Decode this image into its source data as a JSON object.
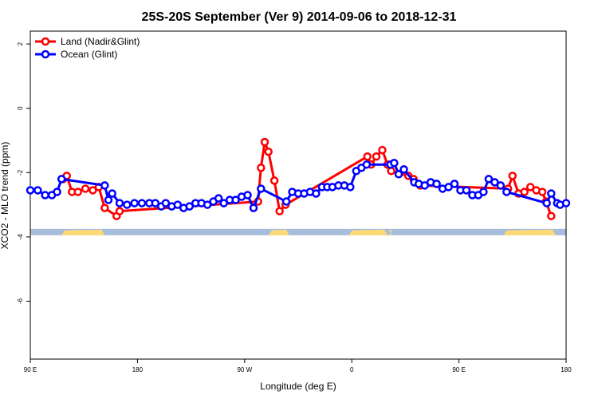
{
  "chart_data": {
    "type": "line",
    "title": "25S-20S September (Ver 9)   2014-09-06 to 2018-12-31",
    "xlabel": "Longitude (deg E)",
    "ylabel": "XCO2 - MLO trend (ppm)",
    "xlim": [
      90,
      450
    ],
    "ylim": [
      -7.8,
      2.4
    ],
    "x_ticks": [
      {
        "value": 90,
        "label": "90 E"
      },
      {
        "value": 162,
        "label": "180"
      },
      {
        "value": 234,
        "label": "90 W"
      },
      {
        "value": 306,
        "label": "0"
      },
      {
        "value": 378,
        "label": "90 E"
      },
      {
        "value": 450,
        "label": "180"
      }
    ],
    "y_ticks": [
      {
        "value": 2,
        "label": "2"
      },
      {
        "value": 0,
        "label": "0"
      },
      {
        "value": -2,
        "label": "-2"
      },
      {
        "value": -4,
        "label": "-4"
      },
      {
        "value": -6,
        "label": "-6"
      }
    ],
    "grid": false,
    "legend_position": "top-left",
    "land_strip": {
      "y_top": -3.75,
      "y_bottom": -3.95,
      "ocean_color": "#a6bddb",
      "land_color": "#fed976",
      "land_x_ranges": [
        [
          111,
          140
        ],
        [
          250,
          264
        ],
        [
          304,
          330
        ],
        [
          331,
          333
        ],
        [
          408,
          443
        ]
      ]
    },
    "series": [
      {
        "name": "Land (Nadir&Glint)",
        "color": "#ff0000",
        "x": [
          112,
          114.5,
          118,
          122,
          127,
          132,
          136,
          140,
          148,
          150,
          243,
          245,
          247.5,
          250,
          254,
          257.5,
          261.5,
          316.5,
          319,
          322.5,
          326.5,
          330,
          332.5,
          344,
          347.5,
          352,
          411,
          414,
          418,
          422,
          426,
          430,
          434,
          436.5,
          440
        ],
        "y": [
          -2.2,
          -2.1,
          -2.6,
          -2.6,
          -2.5,
          -2.55,
          -2.45,
          -3.1,
          -3.35,
          -3.2,
          -2.9,
          -1.85,
          -1.05,
          -1.35,
          -2.25,
          -3.2,
          -3.0,
          -1.5,
          -1.75,
          -1.5,
          -1.3,
          -1.75,
          -1.95,
          -2.1,
          -2.2,
          -2.4,
          -2.5,
          -2.1,
          -2.65,
          -2.6,
          -2.45,
          -2.55,
          -2.6,
          -2.9,
          -3.35
        ]
      },
      {
        "name": "Ocean (Glint)",
        "color": "#0000ff",
        "x": [
          90,
          95,
          100,
          104.5,
          108,
          111,
          140,
          142.5,
          145,
          150,
          155,
          160,
          165,
          170,
          174,
          178,
          181,
          185,
          189,
          193,
          197,
          201,
          205,
          209,
          213,
          216.5,
          220,
          224,
          228,
          232,
          236,
          240,
          245,
          262,
          266,
          270,
          274,
          278,
          282,
          286,
          289.5,
          293,
          297,
          301,
          305,
          309,
          312.5,
          316,
          332,
          334.5,
          337.5,
          341,
          348,
          351,
          355,
          359,
          363,
          367,
          371,
          375,
          379,
          383,
          387,
          391,
          394.5,
          398,
          402,
          406,
          410,
          437,
          440,
          444,
          446,
          450
        ],
        "y": [
          -2.55,
          -2.55,
          -2.7,
          -2.7,
          -2.6,
          -2.2,
          -2.4,
          -2.85,
          -2.65,
          -2.95,
          -3.0,
          -2.95,
          -2.95,
          -2.95,
          -2.95,
          -3.05,
          -2.95,
          -3.05,
          -3.0,
          -3.1,
          -3.05,
          -2.95,
          -2.95,
          -3.0,
          -2.9,
          -2.8,
          -2.95,
          -2.85,
          -2.85,
          -2.75,
          -2.7,
          -3.1,
          -2.5,
          -2.9,
          -2.6,
          -2.65,
          -2.65,
          -2.6,
          -2.65,
          -2.45,
          -2.45,
          -2.45,
          -2.4,
          -2.4,
          -2.45,
          -1.95,
          -1.85,
          -1.75,
          -1.75,
          -1.7,
          -2.05,
          -1.9,
          -2.3,
          -2.35,
          -2.4,
          -2.3,
          -2.35,
          -2.5,
          -2.45,
          -2.35,
          -2.55,
          -2.55,
          -2.7,
          -2.7,
          -2.6,
          -2.2,
          -2.3,
          -2.4,
          -2.6,
          -2.95,
          -2.65,
          -2.95,
          -3.0,
          -2.95
        ]
      }
    ]
  }
}
